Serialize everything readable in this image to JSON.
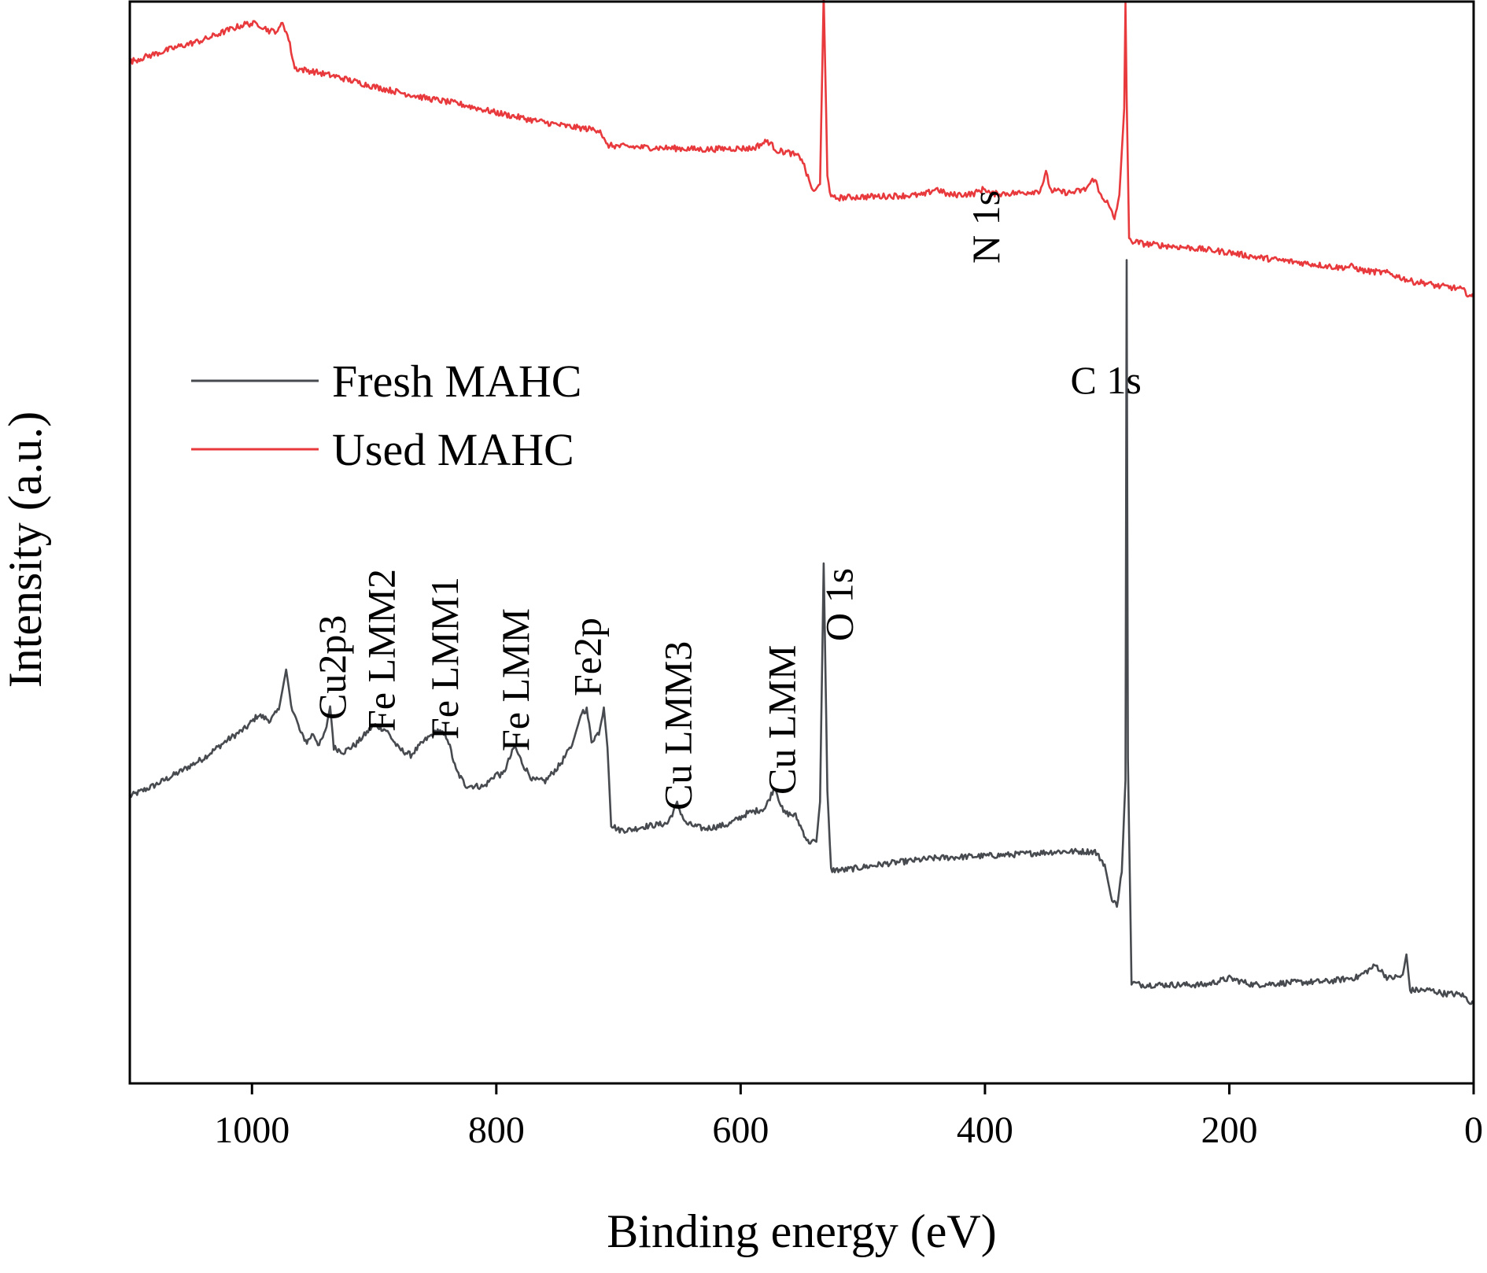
{
  "chart_data": {
    "type": "line",
    "title": "",
    "xlabel": "Binding energy (eV)",
    "ylabel": "Intensity (a.u.)",
    "xlim": [
      1100,
      0
    ],
    "x_reversed": true,
    "y_units": "arbitrary",
    "ylim": [
      0,
      100
    ],
    "xticks": [
      1000,
      800,
      600,
      400,
      200,
      0
    ],
    "xtick_labels": [
      "1000",
      "800",
      "600",
      "400",
      "200",
      "0"
    ],
    "legend": {
      "placement": "middle-left",
      "entries": [
        "Fresh MAHC",
        "Used MAHC"
      ]
    },
    "series": [
      {
        "name": "Fresh MAHC",
        "color": "#474a4f",
        "points": [
          [
            1100,
            26.5
          ],
          [
            1080,
            27.5
          ],
          [
            1060,
            28.7
          ],
          [
            1040,
            30.0
          ],
          [
            1020,
            31.7
          ],
          [
            1005,
            32.8
          ],
          [
            995,
            34.0
          ],
          [
            985,
            33.5
          ],
          [
            978,
            34.5
          ],
          [
            972,
            38.2
          ],
          [
            968,
            35.0
          ],
          [
            960,
            32.3
          ],
          [
            955,
            31.5
          ],
          [
            950,
            32.3
          ],
          [
            945,
            31.2
          ],
          [
            940,
            32.4
          ],
          [
            936,
            34.8
          ],
          [
            933,
            31.0
          ],
          [
            925,
            30.6
          ],
          [
            915,
            31.3
          ],
          [
            900,
            33.1
          ],
          [
            890,
            32.6
          ],
          [
            880,
            30.9
          ],
          [
            870,
            30.3
          ],
          [
            858,
            31.7
          ],
          [
            848,
            32.6
          ],
          [
            840,
            31.9
          ],
          [
            833,
            28.9
          ],
          [
            825,
            27.5
          ],
          [
            810,
            27.4
          ],
          [
            800,
            28.6
          ],
          [
            795,
            28.4
          ],
          [
            785,
            31.1
          ],
          [
            778,
            29.4
          ],
          [
            770,
            28.0
          ],
          [
            760,
            27.9
          ],
          [
            748,
            29.4
          ],
          [
            738,
            31.2
          ],
          [
            730,
            34.3
          ],
          [
            726,
            34.5
          ],
          [
            722,
            31.6
          ],
          [
            716,
            32.4
          ],
          [
            712,
            34.7
          ],
          [
            709,
            31.0
          ],
          [
            706,
            23.9
          ],
          [
            700,
            23.4
          ],
          [
            690,
            23.4
          ],
          [
            680,
            23.7
          ],
          [
            660,
            24.0
          ],
          [
            652,
            25.8
          ],
          [
            645,
            24.0
          ],
          [
            630,
            23.5
          ],
          [
            610,
            23.9
          ],
          [
            595,
            24.9
          ],
          [
            580,
            25.4
          ],
          [
            572,
            27.4
          ],
          [
            565,
            25.0
          ],
          [
            555,
            24.7
          ],
          [
            545,
            22.3
          ],
          [
            538,
            22.3
          ],
          [
            535,
            26.0
          ],
          [
            532,
            48.0
          ],
          [
            529,
            27.0
          ],
          [
            526,
            19.7
          ],
          [
            515,
            19.7
          ],
          [
            480,
            20.3
          ],
          [
            440,
            20.8
          ],
          [
            400,
            21.0
          ],
          [
            380,
            21.1
          ],
          [
            340,
            21.4
          ],
          [
            310,
            21.4
          ],
          [
            302,
            20.2
          ],
          [
            296,
            16.8
          ],
          [
            292,
            16.5
          ],
          [
            288,
            19.5
          ],
          [
            285,
            28.0
          ],
          [
            284,
            76.0
          ],
          [
            283,
            30.0
          ],
          [
            280,
            9.3
          ],
          [
            272,
            9.1
          ],
          [
            250,
            9.1
          ],
          [
            220,
            9.1
          ],
          [
            200,
            9.7
          ],
          [
            180,
            9.1
          ],
          [
            150,
            9.3
          ],
          [
            120,
            9.4
          ],
          [
            95,
            9.8
          ],
          [
            80,
            10.9
          ],
          [
            70,
            9.7
          ],
          [
            58,
            9.9
          ],
          [
            55,
            11.9
          ],
          [
            52,
            8.6
          ],
          [
            35,
            8.6
          ],
          [
            25,
            8.3
          ],
          [
            10,
            8.2
          ],
          [
            0,
            7.3
          ]
        ]
      },
      {
        "name": "Used MAHC",
        "color": "#e8393d",
        "points": [
          [
            1100,
            94.3
          ],
          [
            1080,
            95.0
          ],
          [
            1060,
            95.7
          ],
          [
            1040,
            96.3
          ],
          [
            1020,
            97.2
          ],
          [
            1005,
            97.8
          ],
          [
            995,
            97.8
          ],
          [
            985,
            97.1
          ],
          [
            978,
            97.2
          ],
          [
            975,
            98.0
          ],
          [
            970,
            96.4
          ],
          [
            965,
            93.7
          ],
          [
            950,
            93.4
          ],
          [
            930,
            92.9
          ],
          [
            900,
            92.0
          ],
          [
            880,
            91.5
          ],
          [
            860,
            91.0
          ],
          [
            830,
            90.4
          ],
          [
            800,
            89.6
          ],
          [
            770,
            88.9
          ],
          [
            740,
            88.3
          ],
          [
            725,
            88.1
          ],
          [
            715,
            88.0
          ],
          [
            710,
            86.6
          ],
          [
            700,
            86.5
          ],
          [
            680,
            86.4
          ],
          [
            650,
            86.3
          ],
          [
            630,
            86.2
          ],
          [
            610,
            86.3
          ],
          [
            590,
            86.3
          ],
          [
            578,
            87.0
          ],
          [
            570,
            86.1
          ],
          [
            560,
            85.9
          ],
          [
            550,
            85.4
          ],
          [
            545,
            83.6
          ],
          [
            540,
            82.2
          ],
          [
            535,
            83.0
          ],
          [
            532,
            100.5
          ],
          [
            529,
            84.0
          ],
          [
            526,
            81.7
          ],
          [
            510,
            81.8
          ],
          [
            480,
            81.9
          ],
          [
            450,
            82.0
          ],
          [
            440,
            82.6
          ],
          [
            430,
            82.0
          ],
          [
            410,
            82.1
          ],
          [
            400,
            82.6
          ],
          [
            395,
            82.1
          ],
          [
            370,
            82.2
          ],
          [
            355,
            82.4
          ],
          [
            350,
            84.0
          ],
          [
            346,
            82.4
          ],
          [
            330,
            82.2
          ],
          [
            318,
            82.5
          ],
          [
            310,
            83.6
          ],
          [
            307,
            82.3
          ],
          [
            300,
            81.3
          ],
          [
            294,
            79.8
          ],
          [
            290,
            82.0
          ],
          [
            286,
            90.0
          ],
          [
            285,
            99.7
          ],
          [
            284,
            91.0
          ],
          [
            282,
            77.8
          ],
          [
            270,
            77.5
          ],
          [
            250,
            77.3
          ],
          [
            230,
            77.1
          ],
          [
            200,
            76.7
          ],
          [
            180,
            76.3
          ],
          [
            160,
            76.0
          ],
          [
            130,
            75.6
          ],
          [
            110,
            75.3
          ],
          [
            100,
            75.4
          ],
          [
            90,
            75.0
          ],
          [
            70,
            74.8
          ],
          [
            50,
            74.0
          ],
          [
            40,
            73.9
          ],
          [
            30,
            73.6
          ],
          [
            20,
            73.5
          ],
          [
            10,
            73.3
          ],
          [
            0,
            72.5
          ]
        ]
      }
    ],
    "annotations": [
      {
        "text": "Cu2p3",
        "x": 935,
        "rotated": true
      },
      {
        "text": "Fe LMM2",
        "x": 895,
        "rotated": true
      },
      {
        "text": "Fe LMM1",
        "x": 843,
        "rotated": true
      },
      {
        "text": "Fe LMM",
        "x": 785,
        "rotated": true
      },
      {
        "text": "Fe2p",
        "x": 726,
        "rotated": true
      },
      {
        "text": "Cu LMM3",
        "x": 652,
        "rotated": true
      },
      {
        "text": "Cu LMM",
        "x": 567,
        "rotated": true
      },
      {
        "text": "O 1s",
        "x": 520,
        "rotated": true
      },
      {
        "text": "N 1s",
        "x": 400,
        "rotated": true
      },
      {
        "text": "C 1s",
        "x": 285,
        "rotated": false
      }
    ]
  }
}
